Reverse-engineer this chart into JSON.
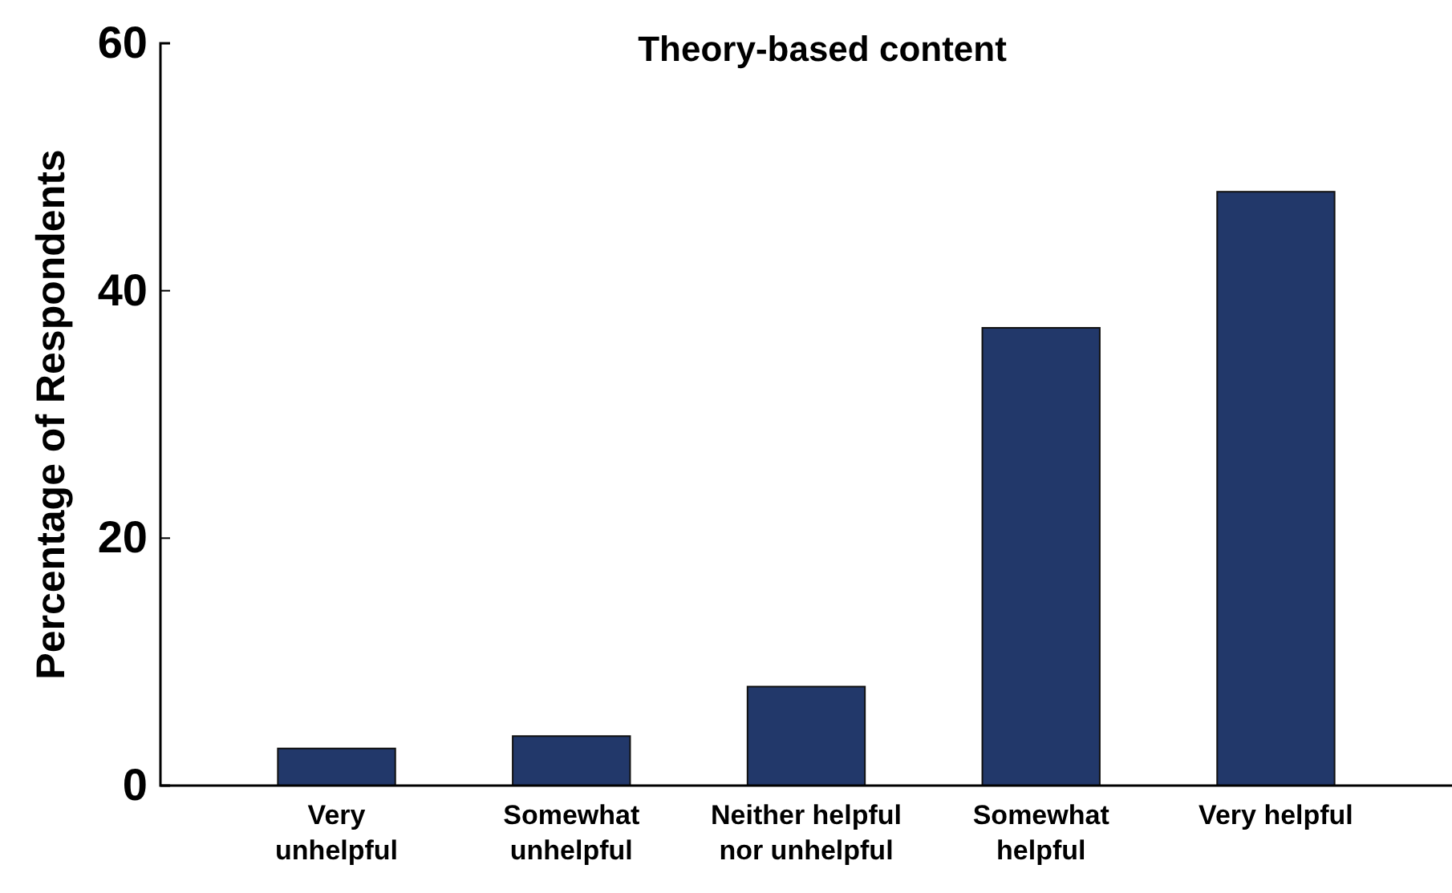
{
  "chart_data": {
    "type": "bar",
    "title": "Theory-based content",
    "ylabel": "Percentage of Respondents",
    "categories": [
      "Very unhelpful",
      "Somewhat unhelpful",
      "Neither helpful nor unhelpful",
      "Somewhat helpful",
      "Very helpful"
    ],
    "values": [
      3,
      4,
      8,
      37,
      48
    ],
    "color": "#22386a",
    "ylim": [
      0,
      60
    ],
    "yticks": [
      0,
      20,
      40,
      60
    ]
  }
}
